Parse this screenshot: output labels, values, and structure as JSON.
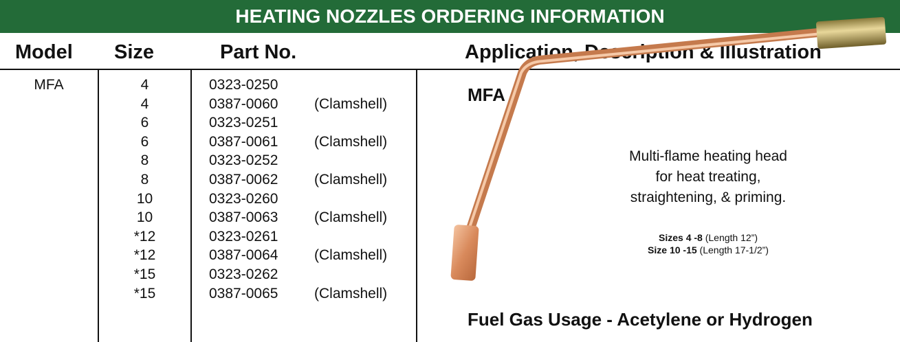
{
  "header": {
    "title": "HEATING NOZZLES ORDERING INFORMATION"
  },
  "table": {
    "columns": [
      "Model",
      "Size",
      "Part No.",
      "Application, Description & Illustration"
    ],
    "model": "MFA",
    "rows": [
      {
        "size": "4",
        "part": "0323-0250"
      },
      {
        "size": "4",
        "part": "0387-0060",
        "note": "(Clamshell)"
      },
      {
        "size": "6",
        "part": "0323-0251"
      },
      {
        "size": "6",
        "part": "0387-0061",
        "note": "(Clamshell)"
      },
      {
        "size": "8",
        "part": "0323-0252"
      },
      {
        "size": "8",
        "part": "0387-0062",
        "note": "(Clamshell)"
      },
      {
        "size": "10",
        "part": "0323-0260"
      },
      {
        "size": "10",
        "part": "0387-0063",
        "note": "(Clamshell)"
      },
      {
        "size": "*12",
        "part": "0323-0261"
      },
      {
        "size": "*12",
        "part": "0387-0064",
        "note": "(Clamshell)"
      },
      {
        "size": "*15",
        "part": "0323-0262"
      },
      {
        "size": "*15",
        "part": "0387-0065",
        "note": "(Clamshell)"
      }
    ]
  },
  "illustration": {
    "label": "MFA",
    "description": [
      "Multi-flame heating head",
      "for heat treating,",
      "straightening, & priming."
    ],
    "sizes": [
      {
        "bold": "Sizes 4 -8",
        "text": "(Length 12”)"
      },
      {
        "bold": "Size 10 -15",
        "text": "(Length 17-1/2”)"
      }
    ],
    "footer": "Fuel Gas Usage - Acetylene or Hydrogen"
  }
}
